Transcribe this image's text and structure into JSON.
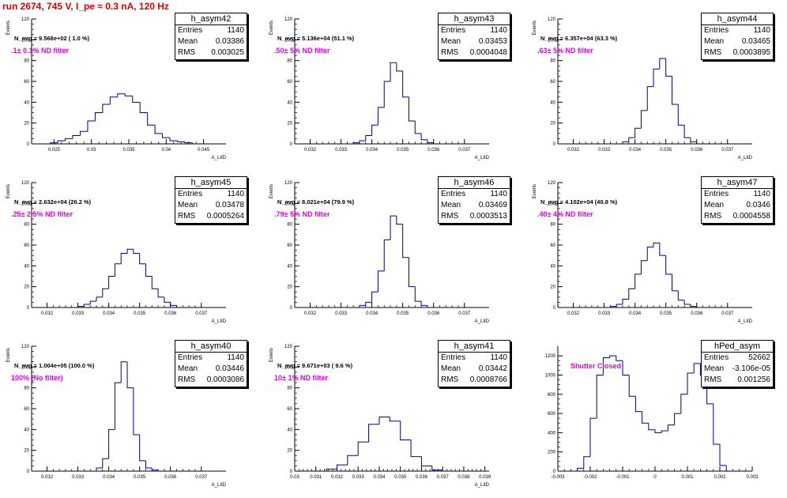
{
  "run_title": "run 2674,   745 V, I_pe ≈ 0.3 nA, 120 Hz",
  "colors": {
    "histogram": "#00008b",
    "run_title": "#e00000",
    "filter_label": "#e000e0"
  },
  "stat_labels": {
    "entries": "Entries",
    "mean": "Mean",
    "rms": "RMS"
  },
  "pads": [
    {
      "name": "h_asym42",
      "navg": "N_avg = 9.568e+02 ( 1.0 %)",
      "filter": ".1± 0.1% ND filter",
      "entries": "1140",
      "mean": "0.03386",
      "rms": "0.003025"
    },
    {
      "name": "h_asym43",
      "navg": "N_avg = 5.136e+04 (51.1 %)",
      "filter": ".50± 5% ND filter",
      "entries": "1140",
      "mean": "0.03453",
      "rms": "0.0004048"
    },
    {
      "name": "h_asym44",
      "navg": "N_avg = 6.357e+04 (63.3 %)",
      "filter": ".63± 5% ND filter",
      "entries": "1140",
      "mean": "0.03465",
      "rms": "0.0003895"
    },
    {
      "name": "h_asym45",
      "navg": "N_avg = 2.632e+04 (26.2 %)",
      "filter": ".25± 2.5% ND filter",
      "entries": "1140",
      "mean": "0.03478",
      "rms": "0.0005264"
    },
    {
      "name": "h_asym46",
      "navg": "N_avg = 8.021e+04 (79.9 %)",
      "filter": ".79± 5% ND filter",
      "entries": "1140",
      "mean": "0.03469",
      "rms": "0.0003513"
    },
    {
      "name": "h_asym47",
      "navg": "N_avg = 4.102e+04 (40.8 %)",
      "filter": ".40± 4% ND filter",
      "entries": "1140",
      "mean": "0.0346",
      "rms": "0.0004558"
    },
    {
      "name": "h_asym40",
      "navg": "N_avg = 1.004e+05 (100.0 %)",
      "filter": "100% (No filter)",
      "entries": "1140",
      "mean": "0.03446",
      "rms": "0.0003086"
    },
    {
      "name": "h_asym41",
      "navg": "N_avg = 9.671e+03 ( 9.6 %)",
      "filter": "10± 1% ND filter",
      "entries": "1140",
      "mean": "0.03442",
      "rms": "0.0008766"
    },
    {
      "name": "hPed_asym",
      "navg": "",
      "filter": "Shutter Closed",
      "entries": "52662",
      "mean": "-3.106e-05",
      "rms": "0.001256"
    }
  ],
  "chart_data": [
    {
      "type": "bar",
      "name": "h_asym42",
      "ylabel": "Events",
      "xlabel": "A_LIID",
      "xlim": [
        0.022,
        0.048
      ],
      "ylim": [
        0,
        120
      ],
      "xticks": [
        0.025,
        0.03,
        0.035,
        0.04,
        0.045
      ],
      "xtick_labels": [
        "0.025",
        "0.03",
        "0.035",
        "0.04",
        "0.045"
      ],
      "yticks": [
        0,
        20,
        40,
        60,
        80,
        100,
        120
      ],
      "ytick_labels": [
        "0",
        "20",
        "40",
        "60",
        "80",
        "100",
        "120"
      ],
      "bin_edges": [
        0.0245,
        0.0255,
        0.0265,
        0.0275,
        0.0285,
        0.0295,
        0.0305,
        0.0315,
        0.0325,
        0.0335,
        0.0345,
        0.0355,
        0.0365,
        0.0375,
        0.0385,
        0.0395,
        0.0405,
        0.0415,
        0.0425,
        0.0435
      ],
      "counts": [
        1,
        3,
        5,
        8,
        12,
        22,
        30,
        38,
        45,
        48,
        46,
        40,
        30,
        18,
        10,
        6,
        3,
        2,
        1
      ]
    },
    {
      "type": "bar",
      "name": "h_asym43",
      "ylabel": "Events",
      "xlabel": "A_LIID",
      "xlim": [
        0.0315,
        0.0378
      ],
      "ylim": [
        0,
        120
      ],
      "xticks": [
        0.032,
        0.033,
        0.034,
        0.035,
        0.036,
        0.037
      ],
      "xtick_labels": [
        "0.032",
        "0.033",
        "0.034",
        "0.035",
        "0.036",
        "0.037"
      ],
      "yticks": [
        0,
        20,
        40,
        60,
        80,
        100,
        120
      ],
      "ytick_labels": [
        "0",
        "20",
        "40",
        "60",
        "80",
        "100",
        "120"
      ],
      "bin_edges": [
        0.0334,
        0.0336,
        0.0338,
        0.034,
        0.0342,
        0.0344,
        0.0346,
        0.0348,
        0.035,
        0.0352,
        0.0354,
        0.0356,
        0.0358,
        0.036
      ],
      "counts": [
        1,
        3,
        8,
        18,
        35,
        60,
        78,
        70,
        45,
        22,
        10,
        4,
        1
      ]
    },
    {
      "type": "bar",
      "name": "h_asym44",
      "ylabel": "Events",
      "xlabel": "A_LIID",
      "xlim": [
        0.0315,
        0.0378
      ],
      "ylim": [
        0,
        120
      ],
      "xticks": [
        0.032,
        0.033,
        0.034,
        0.035,
        0.036,
        0.037
      ],
      "xtick_labels": [
        "0.032",
        "0.033",
        "0.034",
        "0.035",
        "0.036",
        "0.037"
      ],
      "yticks": [
        0,
        20,
        40,
        60,
        80,
        100,
        120
      ],
      "ytick_labels": [
        "0",
        "20",
        "40",
        "60",
        "80",
        "100",
        "120"
      ],
      "bin_edges": [
        0.0336,
        0.0338,
        0.034,
        0.0342,
        0.0344,
        0.0346,
        0.0348,
        0.035,
        0.0352,
        0.0354,
        0.0356,
        0.0358,
        0.036
      ],
      "counts": [
        2,
        6,
        15,
        32,
        55,
        72,
        82,
        65,
        38,
        18,
        6,
        2
      ]
    },
    {
      "type": "bar",
      "name": "h_asym45",
      "ylabel": "Events",
      "xlabel": "A_LIID",
      "xlim": [
        0.0315,
        0.0378
      ],
      "ylim": [
        0,
        120
      ],
      "xticks": [
        0.032,
        0.033,
        0.034,
        0.035,
        0.036,
        0.037
      ],
      "xtick_labels": [
        "0.032",
        "0.033",
        "0.034",
        "0.035",
        "0.036",
        "0.037"
      ],
      "yticks": [
        0,
        20,
        40,
        60,
        80,
        100,
        120
      ],
      "ytick_labels": [
        "0",
        "20",
        "40",
        "60",
        "80",
        "100",
        "120"
      ],
      "bin_edges": [
        0.033,
        0.0332,
        0.0334,
        0.0336,
        0.0338,
        0.034,
        0.0342,
        0.0344,
        0.0346,
        0.0348,
        0.035,
        0.0352,
        0.0354,
        0.0356,
        0.0358,
        0.036,
        0.0362
      ],
      "counts": [
        1,
        3,
        6,
        10,
        18,
        30,
        42,
        52,
        56,
        52,
        42,
        30,
        18,
        10,
        5,
        2
      ]
    },
    {
      "type": "bar",
      "name": "h_asym46",
      "ylabel": "Events",
      "xlabel": "A_LIID",
      "xlim": [
        0.0315,
        0.0378
      ],
      "ylim": [
        0,
        120
      ],
      "xticks": [
        0.032,
        0.033,
        0.034,
        0.035,
        0.036,
        0.037
      ],
      "xtick_labels": [
        "0.032",
        "0.033",
        "0.034",
        "0.035",
        "0.036",
        "0.037"
      ],
      "yticks": [
        0,
        20,
        40,
        60,
        80,
        100,
        120
      ],
      "ytick_labels": [
        "0",
        "20",
        "40",
        "60",
        "80",
        "100",
        "120"
      ],
      "bin_edges": [
        0.0336,
        0.0338,
        0.034,
        0.0342,
        0.0344,
        0.0346,
        0.0348,
        0.035,
        0.0352,
        0.0354,
        0.0356,
        0.0358
      ],
      "counts": [
        2,
        5,
        15,
        35,
        65,
        88,
        80,
        48,
        20,
        6,
        2
      ]
    },
    {
      "type": "bar",
      "name": "h_asym47",
      "ylabel": "Events",
      "xlabel": "A_LIID",
      "xlim": [
        0.0315,
        0.0378
      ],
      "ylim": [
        0,
        120
      ],
      "xticks": [
        0.032,
        0.033,
        0.034,
        0.035,
        0.036,
        0.037
      ],
      "xtick_labels": [
        "0.032",
        "0.033",
        "0.034",
        "0.035",
        "0.036",
        "0.037"
      ],
      "yticks": [
        0,
        20,
        40,
        60,
        80,
        100,
        120
      ],
      "ytick_labels": [
        "0",
        "20",
        "40",
        "60",
        "80",
        "100",
        "120"
      ],
      "bin_edges": [
        0.0332,
        0.0334,
        0.0336,
        0.0338,
        0.034,
        0.0342,
        0.0344,
        0.0346,
        0.0348,
        0.035,
        0.0352,
        0.0354,
        0.0356,
        0.0358,
        0.036
      ],
      "counts": [
        1,
        3,
        8,
        18,
        32,
        45,
        58,
        62,
        50,
        32,
        16,
        7,
        3,
        1
      ]
    },
    {
      "type": "bar",
      "name": "h_asym40",
      "ylabel": "Events",
      "xlabel": "A_LIID",
      "xlim": [
        0.0315,
        0.0378
      ],
      "ylim": [
        0,
        120
      ],
      "xticks": [
        0.032,
        0.033,
        0.034,
        0.035,
        0.036,
        0.037
      ],
      "xtick_labels": [
        "0.032",
        "0.033",
        "0.034",
        "0.035",
        "0.036",
        "0.037"
      ],
      "yticks": [
        0,
        20,
        40,
        60,
        80,
        100,
        120
      ],
      "ytick_labels": [
        "0",
        "20",
        "40",
        "60",
        "80",
        "100",
        "120"
      ],
      "bin_edges": [
        0.0336,
        0.0338,
        0.034,
        0.0342,
        0.0344,
        0.0346,
        0.0348,
        0.035,
        0.0352,
        0.0354,
        0.0356
      ],
      "counts": [
        3,
        12,
        40,
        85,
        105,
        80,
        35,
        10,
        3,
        1
      ]
    },
    {
      "type": "bar",
      "name": "h_asym41",
      "ylabel": "Events",
      "xlabel": "A_LIID",
      "xlim": [
        0.03,
        0.0392
      ],
      "ylim": [
        0,
        120
      ],
      "xticks": [
        0.03,
        0.031,
        0.032,
        0.033,
        0.034,
        0.035,
        0.036,
        0.037,
        0.038,
        0.039
      ],
      "xtick_labels": [
        "0.03",
        "0.031",
        "0.032",
        "0.033",
        "0.034",
        "0.035",
        "0.036",
        "0.037",
        "0.038",
        "0.039"
      ],
      "yticks": [
        0,
        20,
        40,
        60,
        80,
        100,
        120
      ],
      "ytick_labels": [
        "0",
        "20",
        "40",
        "60",
        "80",
        "100",
        "120"
      ],
      "bin_edges": [
        0.0315,
        0.032,
        0.0325,
        0.033,
        0.0335,
        0.034,
        0.0345,
        0.035,
        0.0355,
        0.036,
        0.0365,
        0.037
      ],
      "counts": [
        2,
        6,
        15,
        28,
        45,
        52,
        48,
        30,
        14,
        5,
        1
      ]
    },
    {
      "type": "bar",
      "name": "hPed_asym",
      "ylabel": "",
      "xlabel": "",
      "xlim": [
        -0.003,
        0.003
      ],
      "ylim": [
        0,
        1300
      ],
      "xticks": [
        -0.003,
        -0.002,
        -0.001,
        0,
        0.001,
        0.002,
        0.003
      ],
      "xtick_labels": [
        "-0.003",
        "-0.002",
        "-0.001",
        "0",
        "0.001",
        "0.002",
        "0.003"
      ],
      "yticks": [
        0,
        200,
        400,
        600,
        800,
        1000,
        1200
      ],
      "ytick_labels": [
        "0",
        "200",
        "400",
        "600",
        "800",
        "1000",
        "1200"
      ],
      "bin_edges": [
        -0.0024,
        -0.0022,
        -0.002,
        -0.0018,
        -0.0016,
        -0.0014,
        -0.0012,
        -0.001,
        -0.0008,
        -0.0006,
        -0.0004,
        -0.0002,
        0.0,
        0.0002,
        0.0004,
        0.0006,
        0.0008,
        0.001,
        0.0012,
        0.0014,
        0.0016,
        0.0018,
        0.002,
        0.0022
      ],
      "counts": [
        30,
        150,
        550,
        1000,
        1180,
        1200,
        1150,
        1000,
        780,
        620,
        500,
        430,
        400,
        420,
        480,
        600,
        800,
        1020,
        1120,
        1000,
        700,
        280,
        60
      ]
    }
  ]
}
